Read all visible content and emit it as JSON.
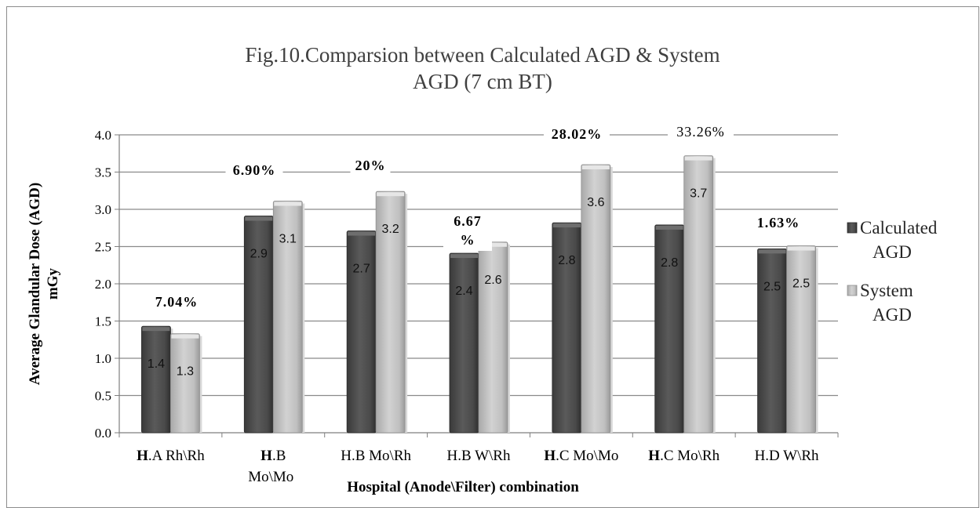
{
  "chart_data": {
    "type": "bar",
    "title_lines": [
      "Fig.10.Comparsion between Calculated AGD & System",
      "AGD  (7 cm BT)"
    ],
    "ylabel_lines": [
      "Average Glandular Dose (AGD)",
      "mGy"
    ],
    "xlabel": "Hospital (Anode\\Filter) combination",
    "ylim": [
      0,
      4.0
    ],
    "yticks": [
      "0.0",
      "0.5",
      "1.0",
      "1.5",
      "2.0",
      "2.5",
      "3.0",
      "3.5",
      "4.0"
    ],
    "grid": true,
    "legend_position": "right",
    "categories": [
      {
        "bold": "H",
        "rest": ".A Rh\\Rh",
        "line2": ""
      },
      {
        "bold": "H",
        "rest": ".B",
        "line2": "Mo\\Mo"
      },
      {
        "bold": "",
        "rest": "H.B Mo\\Rh",
        "line2": ""
      },
      {
        "bold": "",
        "rest": "H.B W\\Rh",
        "line2": ""
      },
      {
        "bold": "H",
        "rest": ".C Mo\\Mo",
        "line2": ""
      },
      {
        "bold": "H",
        "rest": ".C Mo\\Rh",
        "line2": ""
      },
      {
        "bold": "",
        "rest": "H.D W\\Rh",
        "line2": ""
      }
    ],
    "series": [
      {
        "name_lines": [
          "Calculated",
          "AGD"
        ],
        "color": "#4d4d4d",
        "values": [
          1.43,
          2.91,
          2.71,
          2.41,
          2.82,
          2.79,
          2.47
        ],
        "labels": [
          "1.4",
          "2.9",
          "2.7",
          "2.4",
          "2.8",
          "2.8",
          "2.5"
        ]
      },
      {
        "name_lines": [
          "System",
          "AGD"
        ],
        "color": "#bdbdbd",
        "values": [
          1.33,
          3.11,
          3.24,
          2.56,
          3.6,
          3.72,
          2.51
        ],
        "labels": [
          "1.3",
          "3.1",
          "3.2",
          "2.6",
          "3.6",
          "3.7",
          "2.5"
        ]
      }
    ],
    "annotations": [
      {
        "text_lines": [
          "7.04%"
        ],
        "bold": true
      },
      {
        "text_lines": [
          "6.90%"
        ],
        "bold": true
      },
      {
        "text_lines": [
          "20%"
        ],
        "bold": true
      },
      {
        "text_lines": [
          "6.67",
          "%"
        ],
        "bold": true
      },
      {
        "text_lines": [
          "28.02%"
        ],
        "bold": true
      },
      {
        "text_lines": [
          "33.26%"
        ],
        "bold": false
      },
      {
        "text_lines": [
          "1.63%"
        ],
        "bold": true
      }
    ]
  }
}
